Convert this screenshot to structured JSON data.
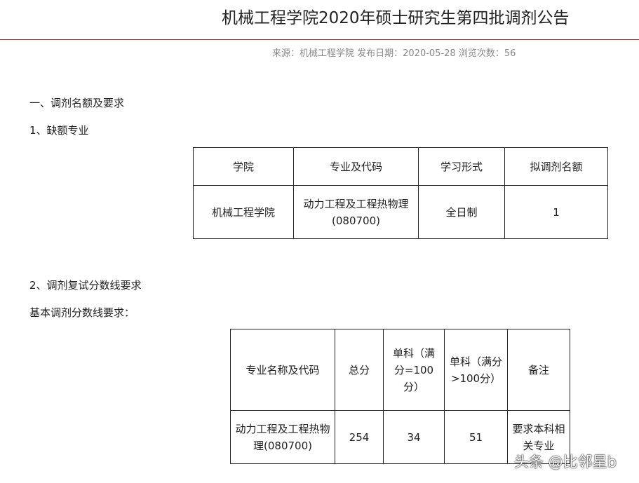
{
  "header": {
    "title": "机械工程学院2020年硕士研究生第四批调剂公告",
    "meta": "来源：机械工程学院 发布日期：2020-05-28 浏览次数：56",
    "accent_color": "#9b2a2a"
  },
  "section1": {
    "heading": "一、调剂名额及要求",
    "sub": "1、缺额专业",
    "table": {
      "headers": [
        "学院",
        "专业及代码",
        "学习形式",
        "拟调剂名额"
      ],
      "row": [
        "机械工程学院",
        "动力工程及工程热物理(080700)",
        "全日制",
        "1"
      ]
    }
  },
  "section2": {
    "heading": "2、调剂复试分数线要求",
    "sub": "基本调剂分数线要求：",
    "table": {
      "headers": [
        "专业名称及代码",
        "总分",
        "单科（满分=100分）",
        "单科（满分>100分）",
        "备注"
      ],
      "row": [
        "动力工程及工程热物理(080700)",
        "254",
        "34",
        "51",
        "要求本科相关专业"
      ]
    }
  },
  "watermark": "头条 @比邻星b"
}
